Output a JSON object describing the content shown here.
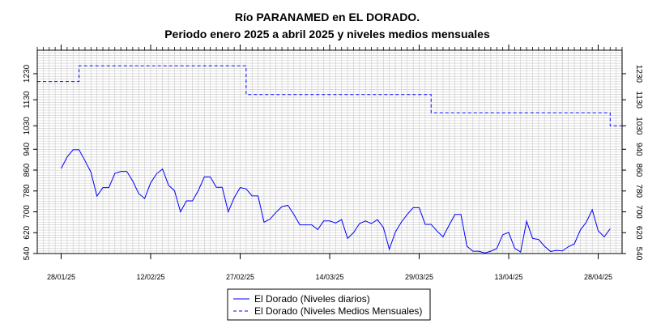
{
  "chart_data": {
    "type": "line",
    "title": "Río PARANAMED en EL DORADO.",
    "subtitle": "Periodo enero 2025 a abril 2025 y niveles medios mensuales",
    "xlabel": "",
    "ylabel": "",
    "ylim": [
      540,
      1320
    ],
    "xlim": [
      "2025-01-24",
      "2025-05-02"
    ],
    "grid": true,
    "legend_position": "bottom-center",
    "y_ticks": [
      540,
      620,
      700,
      780,
      860,
      940,
      1030,
      1130,
      1230
    ],
    "x_tick_labels": [
      "28/01/25",
      "12/02/25",
      "27/02/25",
      "14/03/25",
      "29/03/25",
      "13/04/25",
      "28/04/25"
    ],
    "x_tick_dates": [
      "2025-01-28",
      "2025-02-12",
      "2025-02-27",
      "2025-03-14",
      "2025-03-29",
      "2025-04-13",
      "2025-04-28"
    ],
    "series": [
      {
        "name": "El Dorado (Niveles diarios)",
        "style": "solid",
        "color": "#0000ff",
        "x": [
          "2025-01-28",
          "2025-01-29",
          "2025-01-30",
          "2025-01-31",
          "2025-02-01",
          "2025-02-02",
          "2025-02-03",
          "2025-02-04",
          "2025-02-05",
          "2025-02-06",
          "2025-02-07",
          "2025-02-08",
          "2025-02-09",
          "2025-02-10",
          "2025-02-11",
          "2025-02-12",
          "2025-02-13",
          "2025-02-14",
          "2025-02-15",
          "2025-02-16",
          "2025-02-17",
          "2025-02-18",
          "2025-02-19",
          "2025-02-20",
          "2025-02-21",
          "2025-02-22",
          "2025-02-23",
          "2025-02-24",
          "2025-02-25",
          "2025-02-26",
          "2025-02-27",
          "2025-02-28",
          "2025-03-01",
          "2025-03-02",
          "2025-03-03",
          "2025-03-04",
          "2025-03-05",
          "2025-03-06",
          "2025-03-07",
          "2025-03-08",
          "2025-03-09",
          "2025-03-10",
          "2025-03-11",
          "2025-03-12",
          "2025-03-13",
          "2025-03-14",
          "2025-03-15",
          "2025-03-16",
          "2025-03-17",
          "2025-03-18",
          "2025-03-19",
          "2025-03-20",
          "2025-03-21",
          "2025-03-22",
          "2025-03-23",
          "2025-03-24",
          "2025-03-25",
          "2025-03-26",
          "2025-03-27",
          "2025-03-28",
          "2025-03-29",
          "2025-03-30",
          "2025-03-31",
          "2025-04-01",
          "2025-04-02",
          "2025-04-03",
          "2025-04-04",
          "2025-04-05",
          "2025-04-06",
          "2025-04-07",
          "2025-04-08",
          "2025-04-09",
          "2025-04-10",
          "2025-04-11",
          "2025-04-12",
          "2025-04-13",
          "2025-04-14",
          "2025-04-15",
          "2025-04-16",
          "2025-04-17",
          "2025-04-18",
          "2025-04-19",
          "2025-04-20",
          "2025-04-21",
          "2025-04-22",
          "2025-04-23",
          "2025-04-24",
          "2025-04-25",
          "2025-04-26",
          "2025-04-27",
          "2025-04-28",
          "2025-04-29",
          "2025-04-30"
        ],
        "values": [
          866,
          910,
          938,
          938,
          896,
          852,
          760,
          793,
          793,
          847,
          855,
          855,
          818,
          770,
          751,
          811,
          846,
          864,
          802,
          781,
          700,
          742,
          742,
          782,
          834,
          834,
          794,
          794,
          700,
          754,
          793,
          788,
          761,
          761,
          660,
          672,
          698,
          720,
          725,
          690,
          650,
          650,
          650,
          632,
          665,
          665,
          657,
          670,
          598,
          620,
          655,
          665,
          655,
          670,
          640,
          556,
          622,
          660,
          690,
          716,
          716,
          652,
          652,
          626,
          604,
          648,
          690,
          690,
          568,
          549,
          549,
          542,
          549,
          559,
          612,
          621,
          560,
          546,
          664,
          598,
          594,
          568,
          548,
          552,
          550,
          566,
          577,
          630,
          660,
          708,
          627,
          604,
          635
        ]
      },
      {
        "name": "El Dorado (Niveles Medios Mensuales)",
        "style": "dashed",
        "color": "#0000ff",
        "segments": [
          {
            "x": [
              "2025-01-24",
              "2025-01-31"
            ],
            "value": 1200
          },
          {
            "x": [
              "2025-01-31",
              "2025-02-28"
            ],
            "value": 1260
          },
          {
            "x": [
              "2025-02-28",
              "2025-03-31"
            ],
            "value": 1150
          },
          {
            "x": [
              "2025-03-31",
              "2025-04-30"
            ],
            "value": 1080
          },
          {
            "x": [
              "2025-04-30",
              "2025-05-02"
            ],
            "value": 1030
          }
        ]
      }
    ]
  },
  "colors": {
    "series": "#0000ff",
    "grid": "#c8c8c8",
    "axis": "#000000"
  }
}
